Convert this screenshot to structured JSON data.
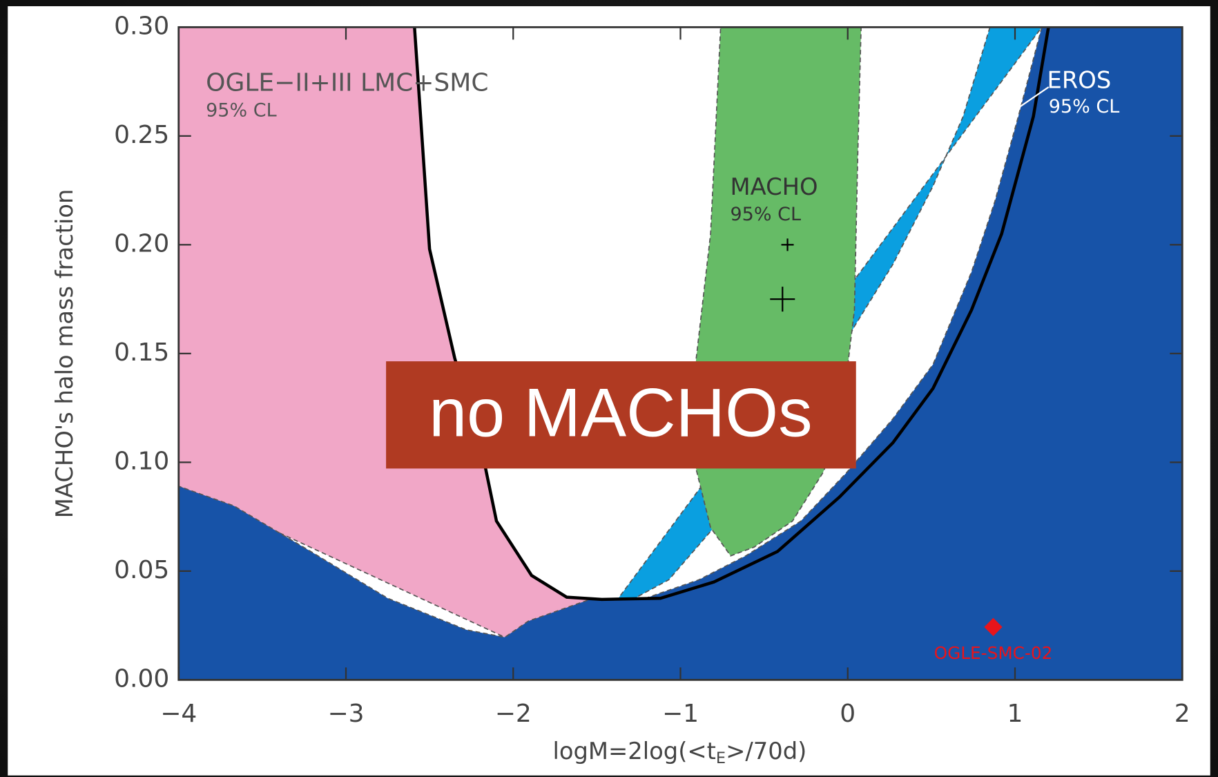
{
  "chart_data": {
    "type": "region",
    "x_label": [
      "logM=2log(<t",
      "E",
      ">/70d)"
    ],
    "y_label": "MACHO's halo mass fraction",
    "xlim": [
      -4,
      2
    ],
    "ylim": [
      0,
      0.3
    ],
    "xticks": [
      {
        "value": -4,
        "label": "−4"
      },
      {
        "value": -3,
        "label": "−3"
      },
      {
        "value": -2,
        "label": "−2"
      },
      {
        "value": -1,
        "label": "−1"
      },
      0,
      1,
      2
    ],
    "yticks": [
      {
        "value": 0,
        "label": "0.00"
      },
      0.05,
      {
        "value": 0.1,
        "label": "0.10"
      },
      0.15,
      {
        "value": 0.2,
        "label": "0.20"
      },
      0.25,
      {
        "value": 0.3,
        "label": "0.30"
      }
    ],
    "series": [
      {
        "name": "OGLE−II+III LMC+SMC",
        "confidence": "95% CL",
        "color": "#f1a7c7",
        "kind": "fill",
        "x": [
          -4,
          -2.59,
          -2.5,
          -2.35,
          -2.17,
          -2.1,
          -1.89,
          -1.68,
          -1.47,
          -2.05,
          -4
        ],
        "y": [
          0.3,
          0.3,
          0.198,
          0.148,
          0.099,
          0.073,
          0.048,
          0.038,
          0.037,
          0.0196,
          0.089
        ]
      },
      {
        "name": "EROS",
        "confidence": "95% CL",
        "color": "#0a9fe0",
        "kind": "fill",
        "x": [
          0.85,
          0.69,
          0.51,
          0.27,
          0.04,
          -0.15,
          -0.42,
          -0.8,
          -1.07,
          -1.31,
          -1.54,
          -1.54,
          1.16
        ],
        "y": [
          0.3,
          0.259,
          0.227,
          0.191,
          0.1625,
          0.134,
          0.102,
          0.07,
          0.046,
          0.036,
          0.036,
          0.02,
          0.3
        ]
      },
      {
        "color": "#1753a8",
        "kind": "fill",
        "x": [
          1.16,
          1.02,
          0.88,
          0.74,
          0.51,
          0.27,
          -0.01,
          -0.28,
          -0.61,
          -0.89,
          -1.21,
          -1.54,
          -1.91,
          -2.05,
          -2.28,
          -2.75,
          -3.21,
          -3.67,
          -4,
          -4,
          2,
          2
        ],
        "y": [
          0.3,
          0.259,
          0.22,
          0.1875,
          0.145,
          0.12,
          0.095,
          0.073,
          0.057,
          0.046,
          0.0375,
          0.037,
          0.027,
          0.0196,
          0.023,
          0.0375,
          0.059,
          0.08,
          0.089,
          0,
          0,
          0.3
        ]
      },
      {
        "name": "MACHO",
        "confidence": "95% CL",
        "color": "#66bb66",
        "kind": "fill",
        "x": [
          -0.76,
          0.08,
          0.06,
          0.04,
          -0.05,
          -0.15,
          -0.33,
          -0.56,
          -0.7,
          -0.82,
          -0.91,
          -0.91,
          -0.82
        ],
        "y": [
          0.3,
          0.3,
          0.241,
          0.17,
          0.1125,
          0.095,
          0.073,
          0.061,
          0.057,
          0.07,
          0.098,
          0.145,
          0.205
        ]
      },
      {
        "color": "#000000",
        "kind": "line",
        "x": [
          -2.59,
          -2.5,
          -2.35,
          -2.17,
          -2.1,
          -1.89,
          -1.68,
          -1.47,
          -1.12,
          -0.8,
          -0.42,
          -0.05,
          0.27,
          0.51,
          0.74,
          0.92,
          1.11,
          1.2
        ],
        "y": [
          0.3,
          0.198,
          0.148,
          0.099,
          0.073,
          0.048,
          0.038,
          0.037,
          0.0375,
          0.045,
          0.059,
          0.084,
          0.109,
          0.134,
          0.17,
          0.205,
          0.259,
          0.3
        ]
      }
    ],
    "points": [
      {
        "x": -0.36,
        "y": 0.2,
        "color": "#000000",
        "marker": "plus-small"
      },
      {
        "x": -0.39,
        "y": 0.175,
        "color": "#000000",
        "marker": "plus"
      },
      {
        "name": "OGLE-SMC-02",
        "x": 0.87,
        "y": 0.0243,
        "color": "#e8141b",
        "marker": "diamond"
      }
    ],
    "banner": "no MACHOs"
  }
}
